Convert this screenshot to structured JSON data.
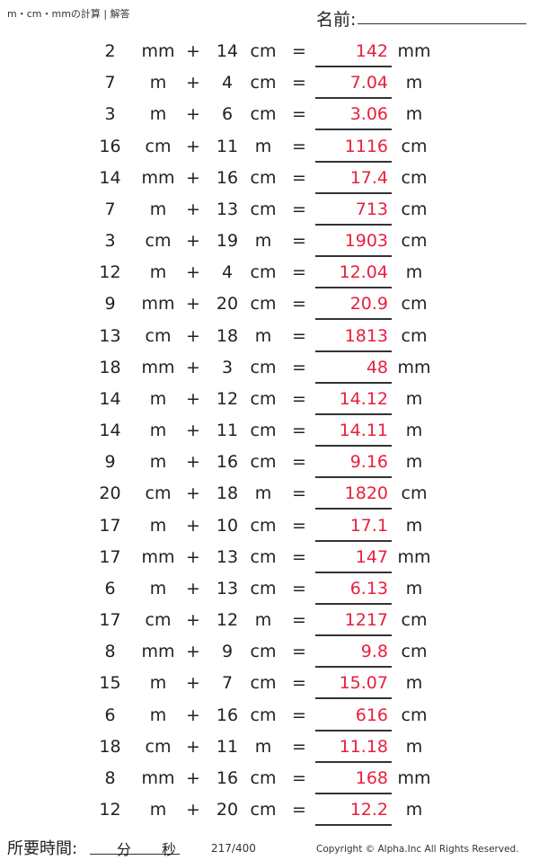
{
  "header": {
    "title": "m・cm・mmの計算 | 解答",
    "name_label": "名前:"
  },
  "operators": {
    "plus": "+",
    "equals": "="
  },
  "rows": [
    {
      "a": "2",
      "ua": "mm",
      "b": "14",
      "ub": "cm",
      "ans": "142",
      "uans": "mm"
    },
    {
      "a": "7",
      "ua": "m",
      "b": "4",
      "ub": "cm",
      "ans": "7.04",
      "uans": "m"
    },
    {
      "a": "3",
      "ua": "m",
      "b": "6",
      "ub": "cm",
      "ans": "3.06",
      "uans": "m"
    },
    {
      "a": "16",
      "ua": "cm",
      "b": "11",
      "ub": "m",
      "ans": "1116",
      "uans": "cm"
    },
    {
      "a": "14",
      "ua": "mm",
      "b": "16",
      "ub": "cm",
      "ans": "17.4",
      "uans": "cm"
    },
    {
      "a": "7",
      "ua": "m",
      "b": "13",
      "ub": "cm",
      "ans": "713",
      "uans": "cm"
    },
    {
      "a": "3",
      "ua": "cm",
      "b": "19",
      "ub": "m",
      "ans": "1903",
      "uans": "cm"
    },
    {
      "a": "12",
      "ua": "m",
      "b": "4",
      "ub": "cm",
      "ans": "12.04",
      "uans": "m"
    },
    {
      "a": "9",
      "ua": "mm",
      "b": "20",
      "ub": "cm",
      "ans": "20.9",
      "uans": "cm"
    },
    {
      "a": "13",
      "ua": "cm",
      "b": "18",
      "ub": "m",
      "ans": "1813",
      "uans": "cm"
    },
    {
      "a": "18",
      "ua": "mm",
      "b": "3",
      "ub": "cm",
      "ans": "48",
      "uans": "mm"
    },
    {
      "a": "14",
      "ua": "m",
      "b": "12",
      "ub": "cm",
      "ans": "14.12",
      "uans": "m"
    },
    {
      "a": "14",
      "ua": "m",
      "b": "11",
      "ub": "cm",
      "ans": "14.11",
      "uans": "m"
    },
    {
      "a": "9",
      "ua": "m",
      "b": "16",
      "ub": "cm",
      "ans": "9.16",
      "uans": "m"
    },
    {
      "a": "20",
      "ua": "cm",
      "b": "18",
      "ub": "m",
      "ans": "1820",
      "uans": "cm"
    },
    {
      "a": "17",
      "ua": "m",
      "b": "10",
      "ub": "cm",
      "ans": "17.1",
      "uans": "m"
    },
    {
      "a": "17",
      "ua": "mm",
      "b": "13",
      "ub": "cm",
      "ans": "147",
      "uans": "mm"
    },
    {
      "a": "6",
      "ua": "m",
      "b": "13",
      "ub": "cm",
      "ans": "6.13",
      "uans": "m"
    },
    {
      "a": "17",
      "ua": "cm",
      "b": "12",
      "ub": "m",
      "ans": "1217",
      "uans": "cm"
    },
    {
      "a": "8",
      "ua": "mm",
      "b": "9",
      "ub": "cm",
      "ans": "9.8",
      "uans": "cm"
    },
    {
      "a": "15",
      "ua": "m",
      "b": "7",
      "ub": "cm",
      "ans": "15.07",
      "uans": "m"
    },
    {
      "a": "6",
      "ua": "m",
      "b": "16",
      "ub": "cm",
      "ans": "616",
      "uans": "cm"
    },
    {
      "a": "18",
      "ua": "cm",
      "b": "11",
      "ub": "m",
      "ans": "11.18",
      "uans": "m"
    },
    {
      "a": "8",
      "ua": "mm",
      "b": "16",
      "ub": "cm",
      "ans": "168",
      "uans": "mm"
    },
    {
      "a": "12",
      "ua": "m",
      "b": "20",
      "ub": "cm",
      "ans": "12.2",
      "uans": "m"
    }
  ],
  "footer": {
    "time_label": "所要時間:",
    "minutes": "分",
    "seconds": "秒",
    "page": "217/400",
    "copyright": "Copyright © Alpha.Inc All Rights Reserved."
  },
  "colors": {
    "answer": "#e8203c",
    "text": "#222222"
  }
}
